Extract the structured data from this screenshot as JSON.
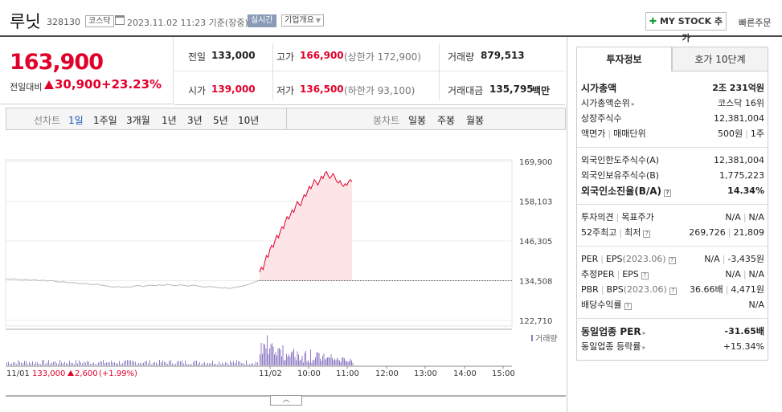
{
  "header": {
    "name": "루닛",
    "code": "328130",
    "market": "코스닥",
    "timestamp": "2023.11.02 11:23 기준(장중)",
    "realtime": "실시간",
    "company_info": "기업개요",
    "my_stock": "MY STOCK 추가",
    "quick_order": "빠른주문"
  },
  "price": {
    "current": "163,900",
    "prev_label": "전일대비",
    "change": "30,900",
    "change_pct": "+23.23%"
  },
  "stats": {
    "prev_close_label": "전일",
    "prev_close": "133,000",
    "high_label": "고가",
    "high": "166,900",
    "upper_limit": "(상한가 172,900)",
    "volume_label": "거래량",
    "volume": "879,513",
    "open_label": "시가",
    "open": "139,000",
    "low_label": "저가",
    "low": "136,500",
    "lower_limit": "(하한가 93,100)",
    "amount_label": "거래대금",
    "amount": "135,795",
    "amount_unit": "백만"
  },
  "toolbar": {
    "line_label": "선차트",
    "periods": [
      "1일",
      "1주일",
      "3개월",
      "1년",
      "3년",
      "5년",
      "10년"
    ],
    "candle_label": "봉차트",
    "candles": [
      "일봉",
      "주봉",
      "월봉"
    ]
  },
  "chart_data": {
    "type": "line",
    "y_ticks": [
      "169,900",
      "158,103",
      "146,305",
      "134,508",
      "122,710"
    ],
    "y_values": [
      169900,
      158103,
      146305,
      134508,
      122710
    ],
    "ylim": [
      122710,
      169900
    ],
    "x_labels": [
      "11/02",
      "10:00",
      "11:00",
      "12:00",
      "13:00",
      "14:00",
      "15:00"
    ],
    "volume_label": "거래량",
    "prev_day_label": "11/01",
    "prev_day_close": "133,000",
    "prev_day_change": "2,600",
    "prev_day_pct": "(+1.99%)",
    "baseline": 134508,
    "prev_day_series": [
      135000,
      134900,
      135100,
      134800,
      134700,
      134900,
      134600,
      134800,
      134500,
      134700,
      134400,
      134600,
      134300,
      134100,
      134200,
      133900,
      134000,
      133800,
      133600,
      133700,
      133500,
      133300,
      133500,
      133200,
      133000,
      132800,
      132600,
      132800,
      132500,
      132700,
      132600,
      132900,
      133100,
      132800,
      133000,
      133200,
      133000,
      133300,
      133100,
      133400,
      133200,
      133000,
      133300,
      133100,
      132900,
      133200,
      133000,
      132800,
      132600,
      132800,
      132700,
      132500,
      132300,
      132400,
      132200,
      132500,
      132700,
      132900,
      133200,
      133600,
      134100,
      134600
    ],
    "today_series": [
      137000,
      138500,
      137800,
      140000,
      142000,
      141500,
      143800,
      145000,
      144500,
      146500,
      148000,
      147200,
      149000,
      150500,
      150000,
      152000,
      153500,
      152800,
      154000,
      155500,
      154800,
      156500,
      158000,
      157200,
      156800,
      158500,
      160000,
      159500,
      161000,
      162500,
      161800,
      163000,
      164500,
      163800,
      162900,
      164000,
      165500,
      164800,
      166200,
      166900,
      165800,
      164900,
      165500,
      166300,
      165200,
      164000,
      163500,
      164200,
      163000,
      162500,
      163300,
      162800,
      163900,
      164500,
      163900
    ]
  },
  "expand": "︿",
  "right_panel": {
    "tab_invest": "투자정보",
    "tab_ask": "호가 10단계",
    "market_cap_label": "시가총액",
    "market_cap": "2조 231억원",
    "cap_rank_label": "시가총액순위",
    "cap_rank": "코스닥 16위",
    "shares_label": "상장주식수",
    "shares": "12,381,004",
    "par_label": "액면가",
    "unit_label": "매매단위",
    "par": "500원",
    "unit": "1주",
    "foreign_limit_label": "외국인한도주식수(A)",
    "foreign_limit": "12,381,004",
    "foreign_hold_label": "외국인보유주식수(B)",
    "foreign_hold": "1,775,223",
    "foreign_ratio_label": "외국인소진율(B/A)",
    "foreign_ratio": "14.34%",
    "opinion_label": "투자의견",
    "target_label": "목표주가",
    "opinion": "N/A",
    "target": "N/A",
    "high52_label": "52주최고",
    "low52_label": "최저",
    "high52": "269,726",
    "low52": "21,809",
    "per_label": "PER",
    "eps_label": "EPS",
    "period1": "(2023.06)",
    "per": "N/A",
    "eps": "-3,435원",
    "est_per_label": "추정PER",
    "est_eps_label": "EPS",
    "est_per": "N/A",
    "est_eps": "N/A",
    "pbr_label": "PBR",
    "bps_label": "BPS",
    "period2": "(2023.06)",
    "pbr": "36.66배",
    "bps": "4,471원",
    "div_label": "배당수익률",
    "div": "N/A",
    "sector_per_label": "동일업종 PER",
    "sector_per": "-31.65배",
    "sector_rate_label": "동일업종 등락률",
    "sector_rate": "+15.34%"
  }
}
